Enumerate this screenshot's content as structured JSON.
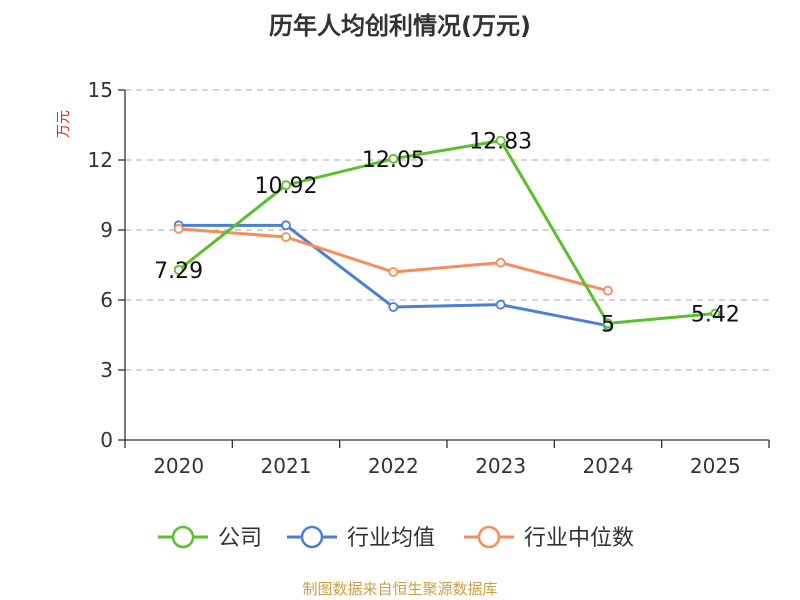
{
  "chart_data": {
    "type": "line",
    "title": "历年人均创利情况(万元)",
    "ylabel": "万元",
    "categories": [
      "2020",
      "2021",
      "2022",
      "2023",
      "2024",
      "2025"
    ],
    "ylim": [
      0,
      15
    ],
    "yticks": [
      0,
      3,
      6,
      9,
      12,
      15
    ],
    "grid": true,
    "legend_position": "bottom",
    "series": [
      {
        "name": "公司",
        "color": "#5bc02c",
        "values": [
          7.29,
          10.92,
          12.05,
          12.83,
          5,
          5.42
        ],
        "labels": [
          "7.29",
          "10.92",
          "12.05",
          "12.83",
          "5",
          "5.42"
        ]
      },
      {
        "name": "行业均值",
        "color": "#4a7fd6",
        "values": [
          9.2,
          9.2,
          5.7,
          5.8,
          4.9,
          null
        ]
      },
      {
        "name": "行业中位数",
        "color": "#f58e5b",
        "values": [
          9.05,
          8.7,
          7.2,
          7.6,
          6.4,
          null
        ]
      }
    ],
    "source": "制图数据来自恒生聚源数据库"
  }
}
